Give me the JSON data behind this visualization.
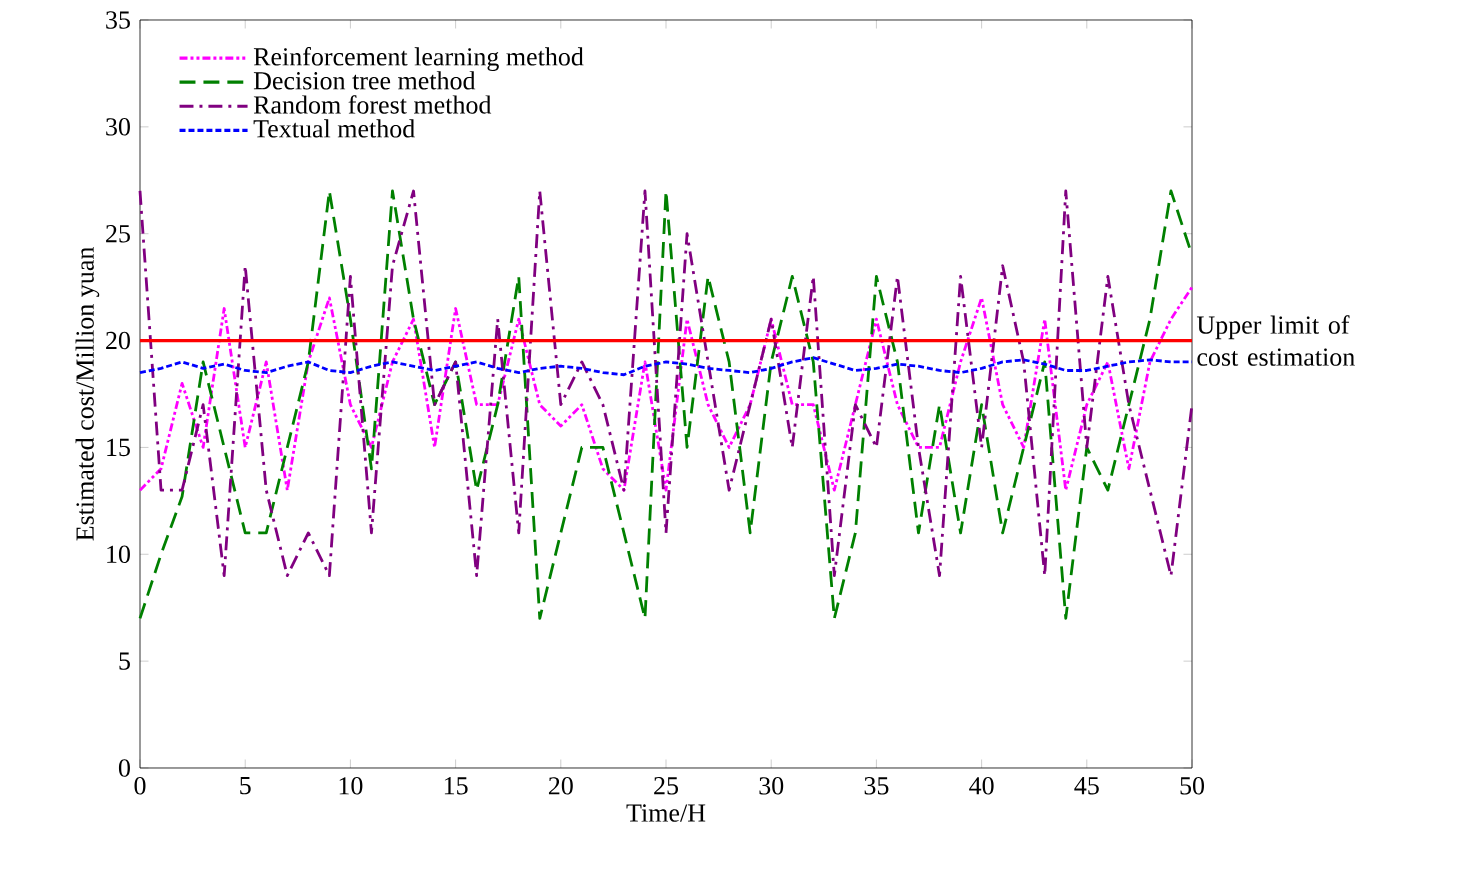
{
  "chart_data": {
    "type": "line",
    "xlabel": "Time/H",
    "ylabel": "Estimated cost/Million yuan",
    "x": [
      0,
      1,
      2,
      3,
      4,
      5,
      6,
      7,
      8,
      9,
      10,
      11,
      12,
      13,
      14,
      15,
      16,
      17,
      18,
      19,
      20,
      21,
      22,
      23,
      24,
      25,
      26,
      27,
      28,
      29,
      30,
      31,
      32,
      33,
      34,
      35,
      36,
      37,
      38,
      39,
      40,
      41,
      42,
      43,
      44,
      45,
      46,
      47,
      48,
      49,
      50
    ],
    "series": [
      {
        "name": "Reinforcement learning method",
        "color": "#ff00ff",
        "line_style": "dotted",
        "values": [
          13,
          14,
          18,
          15,
          21.5,
          15,
          19,
          13,
          19,
          22,
          17,
          15,
          19,
          21,
          15,
          21.5,
          17,
          17,
          21,
          17,
          16,
          17,
          14,
          13,
          19,
          13,
          21,
          17,
          15,
          17,
          21,
          17,
          17,
          13,
          17,
          21,
          17,
          15,
          15,
          19,
          22,
          17,
          15,
          21,
          13,
          17,
          19,
          14,
          19,
          21,
          22.5
        ]
      },
      {
        "name": "Decision tree method",
        "color": "#008000",
        "line_style": "dashed",
        "values": [
          7,
          10,
          12.7,
          19,
          15,
          11,
          11,
          15,
          19,
          27,
          21,
          14,
          27,
          21,
          17,
          19,
          13,
          17,
          23,
          7,
          11,
          15,
          15,
          11,
          7,
          27,
          15,
          23,
          19,
          11,
          19,
          23,
          19,
          7,
          11,
          23,
          19,
          11,
          17,
          11,
          17,
          11,
          15,
          19,
          7,
          15,
          13,
          17,
          21,
          27,
          24
        ]
      },
      {
        "name": "Random forest method",
        "color": "#800080",
        "line_style": "dashed",
        "values": [
          27,
          13,
          13,
          17,
          9,
          23.5,
          13,
          9,
          11,
          9,
          23,
          11,
          23.5,
          27,
          17,
          19,
          9,
          21,
          11,
          27,
          17,
          19,
          17,
          13,
          27,
          11,
          25,
          19,
          13,
          17,
          21,
          15,
          23,
          9,
          17,
          15,
          23,
          15,
          9,
          23,
          15,
          23.5,
          19,
          9,
          27,
          15,
          23,
          17,
          13,
          9,
          17
        ]
      },
      {
        "name": "Textual method",
        "color": "#0000ff",
        "line_style": "dotted",
        "values": [
          18.5,
          18.7,
          19,
          18.7,
          18.9,
          18.6,
          18.5,
          18.8,
          19,
          18.6,
          18.5,
          18.8,
          19,
          18.8,
          18.6,
          18.8,
          19,
          18.7,
          18.5,
          18.7,
          18.8,
          18.7,
          18.5,
          18.4,
          18.8,
          19,
          18.9,
          18.7,
          18.6,
          18.5,
          18.7,
          19,
          19.2,
          18.9,
          18.6,
          18.7,
          18.9,
          18.8,
          18.6,
          18.5,
          18.7,
          19,
          19.1,
          18.9,
          18.6,
          18.6,
          18.8,
          19,
          19.1,
          19,
          19
        ]
      }
    ],
    "ref_lines": [
      {
        "axis": "y",
        "value": 20,
        "label": "Upper limit of cost estimation",
        "color": "#ff0000"
      }
    ],
    "xlim": [
      0,
      50
    ],
    "xticks": [
      0,
      5,
      10,
      15,
      20,
      25,
      30,
      35,
      40,
      45,
      50
    ],
    "ylim": [
      0,
      35
    ],
    "yticks": [
      0,
      5,
      10,
      15,
      20,
      25,
      30,
      35
    ],
    "legend": "top left",
    "grid": false
  }
}
